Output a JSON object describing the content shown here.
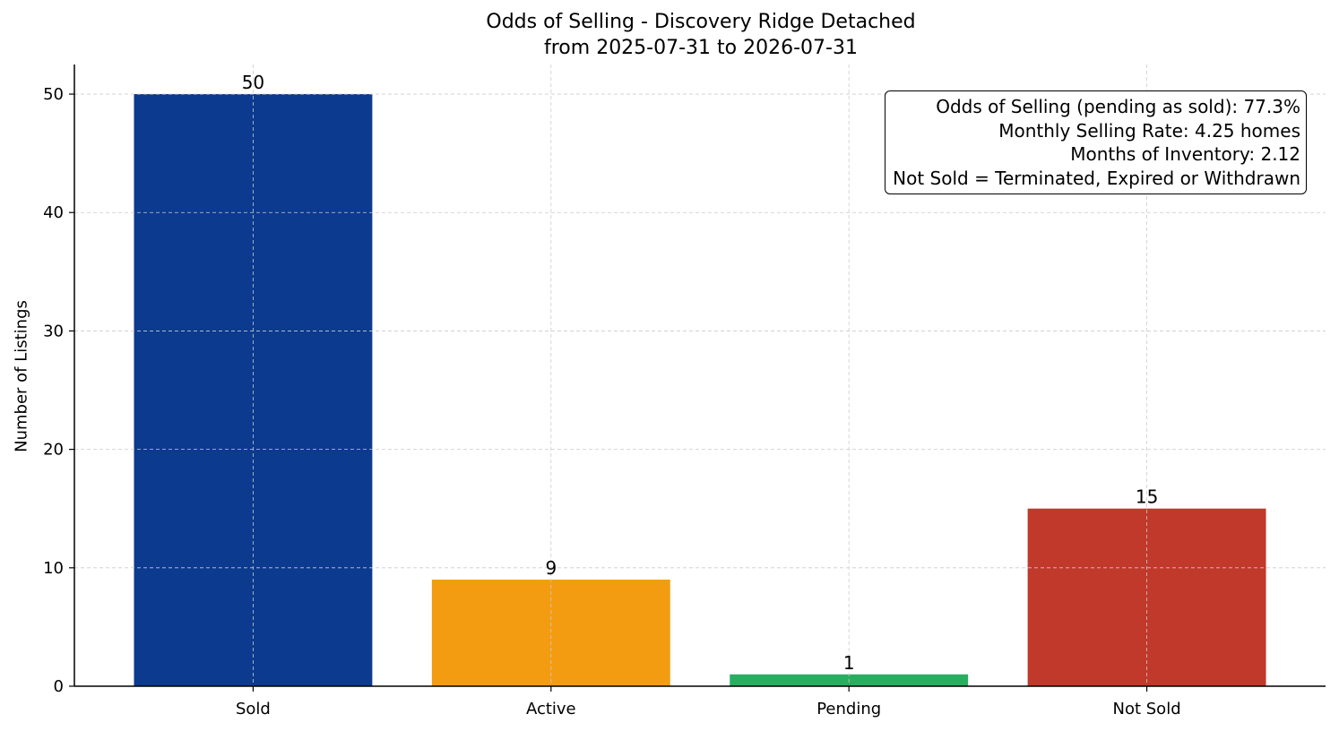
{
  "chart_data": {
    "type": "bar",
    "title": "Odds of Selling - Discovery Ridge Detached",
    "subtitle": "from 2025-07-31 to 2026-07-31",
    "xlabel": "",
    "ylabel": "Number of Listings",
    "categories": [
      "Sold",
      "Active",
      "Pending",
      "Not Sold"
    ],
    "values": [
      50,
      9,
      1,
      15
    ],
    "data_labels": [
      "50",
      "9",
      "1",
      "15"
    ],
    "colors": [
      "#0b3a8f",
      "#f39c12",
      "#27ae60",
      "#c0392b"
    ],
    "ylim": [
      0,
      52.5
    ],
    "yticks": [
      0,
      10,
      20,
      30,
      40,
      50
    ],
    "grid": true,
    "annotation_box": {
      "placement": "top-right",
      "lines": [
        "Odds of Selling (pending as sold): 77.3%",
        "Monthly Selling Rate: 4.25 homes",
        "Months of Inventory: 2.12",
        "Not Sold = Terminated, Expired or Withdrawn"
      ]
    }
  }
}
